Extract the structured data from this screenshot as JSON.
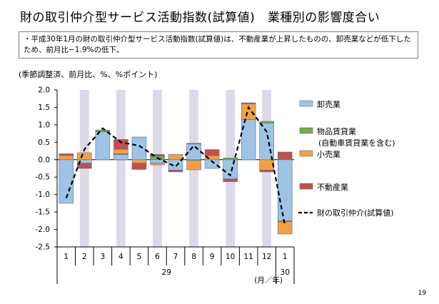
{
  "header": {
    "title": "財の取引仲介型サービス活動指数(試算値)　業種別の影響度合い"
  },
  "note": {
    "text": "・平成30年1月の財の取引仲介型サービス活動指数(試算値)は、不動産業が上昇したものの、卸売業などが低下したため、前月比−1.9%の低下。"
  },
  "units_label": "(季節調整済、前月比、%、%ポイント)",
  "page_number": "19",
  "colors": {
    "wholesale": "#9dc3e6",
    "goods_rental": "#70ad47",
    "retail": "#f4a040",
    "real_estate": "#c0504d",
    "line": "#000000",
    "shade": "#ddd9e8",
    "bar_border": "#5b6f8f"
  },
  "chart_data": {
    "type": "bar",
    "stacked": true,
    "categories": [
      "1",
      "2",
      "3",
      "4",
      "5",
      "6",
      "7",
      "8",
      "9",
      "10",
      "11",
      "12",
      "1"
    ],
    "year_labels": [
      {
        "text": "29",
        "span": [
          0,
          11
        ]
      },
      {
        "text": "30",
        "span": [
          12,
          12
        ]
      }
    ],
    "axis_unit_label": "(月／年)",
    "ylim": [
      -2.5,
      2.0
    ],
    "yticks": [
      "2.0",
      "1.5",
      "1.0",
      "0.5",
      "0.0",
      "-0.5",
      "-1.0",
      "-1.5",
      "-2.0",
      "-2.5"
    ],
    "shaded_categories": [
      1,
      3,
      5,
      7,
      9,
      11
    ],
    "series": [
      {
        "name": "卸売業",
        "key": "wholesale",
        "values": [
          -1.25,
          -0.1,
          0.8,
          0.15,
          0.65,
          -0.1,
          -0.3,
          0.45,
          -0.25,
          -0.55,
          1.15,
          1.05,
          -1.75
        ]
      },
      {
        "name": "物品賃貸業(自動車賃貸業を含む)",
        "key": "goods_rental",
        "values": [
          0.0,
          0.0,
          0.05,
          0.02,
          0.0,
          0.1,
          0.0,
          -0.02,
          0.0,
          0.05,
          0.0,
          0.05,
          -0.03
        ]
      },
      {
        "name": "小売業",
        "key": "retail",
        "values": [
          0.12,
          0.2,
          0.0,
          0.13,
          -0.1,
          -0.05,
          0.15,
          -0.27,
          0.12,
          0.0,
          0.45,
          -0.3,
          -0.35
        ]
      },
      {
        "name": "不動産業",
        "key": "real_estate",
        "values": [
          0.05,
          -0.15,
          0.0,
          0.28,
          -0.18,
          0.05,
          -0.05,
          0.02,
          0.17,
          -0.08,
          0.03,
          -0.05,
          0.22
        ]
      }
    ],
    "line_series": {
      "name": "財の取引仲介(試算値)",
      "key": "line",
      "values": [
        -1.1,
        0.3,
        0.9,
        0.5,
        0.4,
        0.05,
        -0.2,
        0.4,
        -0.05,
        -0.45,
        1.5,
        0.8,
        -1.9
      ]
    },
    "legend": {
      "placement": "right",
      "entries": [
        {
          "label": "卸売業",
          "key": "wholesale",
          "kind": "box"
        },
        {
          "label": "物品賃貸業",
          "sub": "(自動車賃貸業を含む)",
          "key": "goods_rental",
          "kind": "box"
        },
        {
          "label": "小売業",
          "key": "retail",
          "kind": "box"
        },
        {
          "label": "不動産業",
          "key": "real_estate",
          "kind": "box"
        },
        {
          "label": "財の取引仲介(試算値)",
          "key": "line",
          "kind": "dash"
        }
      ]
    }
  }
}
